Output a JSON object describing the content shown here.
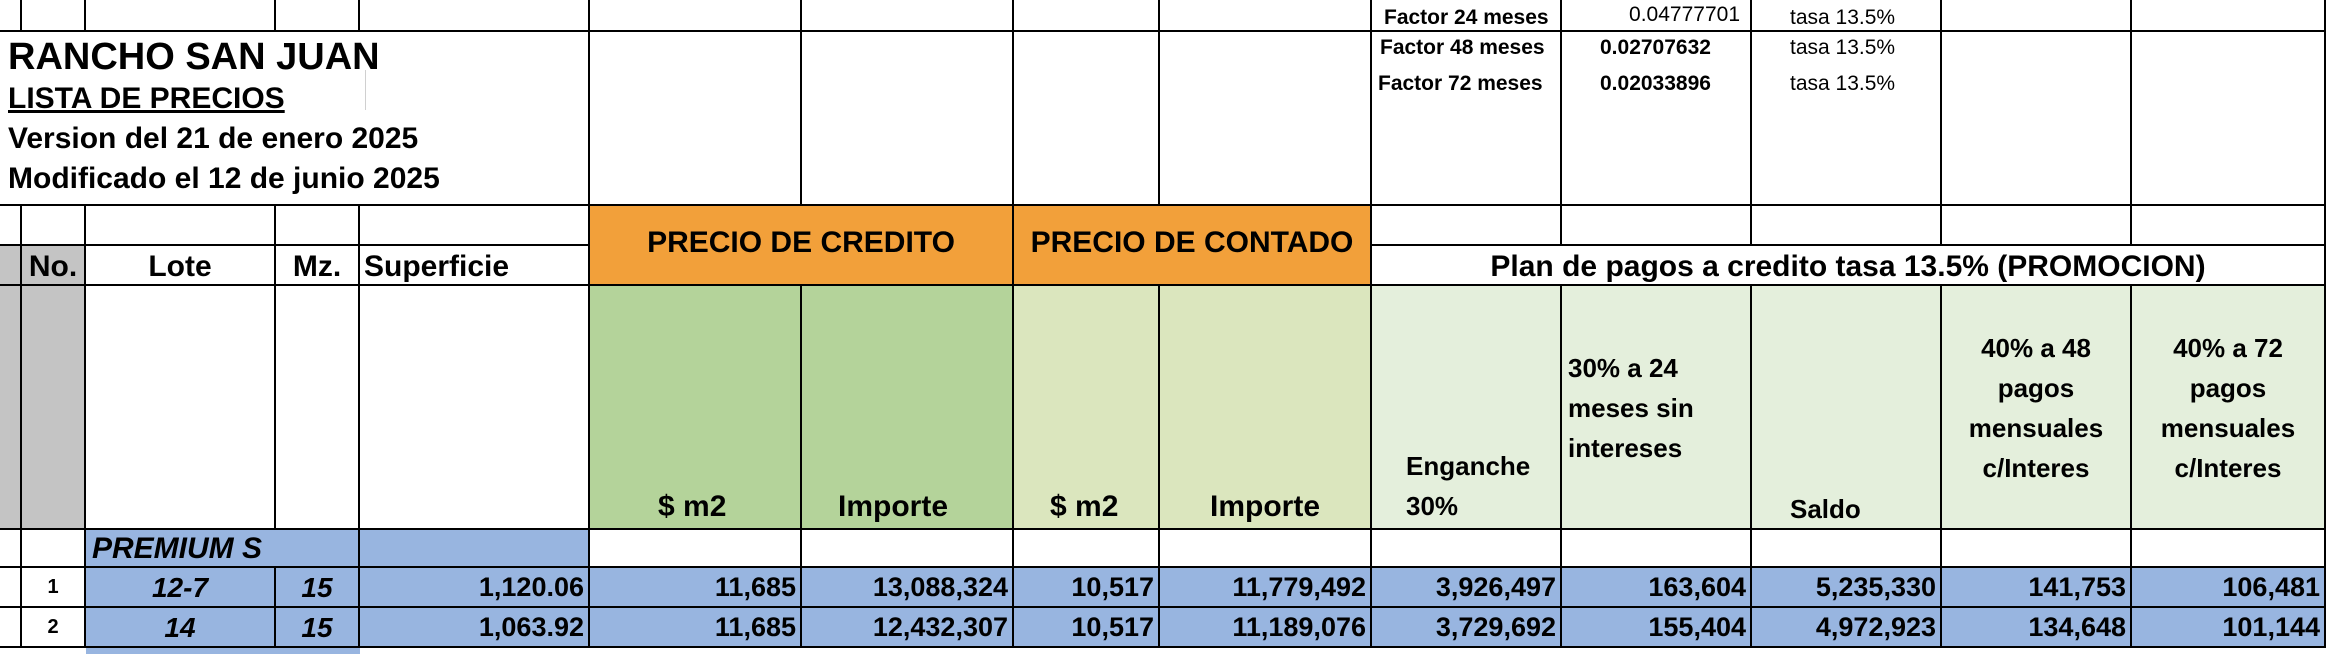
{
  "title_block": {
    "ranch_name": "RANCHO SAN JUAN",
    "list_title": "LISTA DE PRECIOS",
    "version_line": "Version del 21 de enero 2025",
    "modified_line": "Modificado el 12 de junio 2025"
  },
  "factors": [
    {
      "label": "Factor 24 meses",
      "value": "0.04777701",
      "rate": "tasa 13.5%"
    },
    {
      "label": "Factor 48 meses",
      "value": "0.02707632",
      "rate": "tasa 13.5%"
    },
    {
      "label": "Factor 72 meses",
      "value": "0.02033896",
      "rate": "tasa 13.5%"
    }
  ],
  "headers": {
    "no": "No.",
    "lote": "Lote",
    "mz": "Mz.",
    "superficie": "Superficie",
    "precio_credito": "PRECIO DE CREDITO",
    "precio_contado": "PRECIO DE CONTADO",
    "plan_pagos": "Plan de pagos a credito tasa 13.5% (PROMOCION)",
    "credito_m2": "$ m2",
    "credito_importe": "Importe",
    "contado_m2": "$ m2",
    "contado_importe": "Importe",
    "enganche": "Enganche 30%",
    "treinta_24": "30% a 24 meses sin intereses",
    "saldo": "Saldo",
    "cuarenta_48": "40% a 48 pagos mensuales c/Interes",
    "cuarenta_72": "40% a 72 pagos mensuales c/Interes"
  },
  "section_label": "PREMIUM S",
  "rows": [
    {
      "no": "1",
      "lote": "12-7",
      "mz": "15",
      "superficie": "1,120.06",
      "credito_m2": "11,685",
      "credito_importe": "13,088,324",
      "contado_m2": "10,517",
      "contado_importe": "11,779,492",
      "enganche": "3,926,497",
      "treinta_24": "163,604",
      "saldo": "5,235,330",
      "cuarenta_48": "141,753",
      "cuarenta_72": "106,481"
    },
    {
      "no": "2",
      "lote": "14",
      "mz": "15",
      "superficie": "1,063.92",
      "credito_m2": "11,685",
      "credito_importe": "12,432,307",
      "contado_m2": "10,517",
      "contado_importe": "11,189,076",
      "enganche": "3,729,692",
      "treinta_24": "155,404",
      "saldo": "4,972,923",
      "cuarenta_48": "134,648",
      "cuarenta_72": "101,144"
    }
  ],
  "colors": {
    "orange_header": "#f2a03a",
    "credit_green": "#b4d39a",
    "cash_green": "#dbe6be",
    "plan_green": "#e4efdc",
    "row_blue": "#98b5e0",
    "gutter_gray": "#c4c4c4"
  }
}
